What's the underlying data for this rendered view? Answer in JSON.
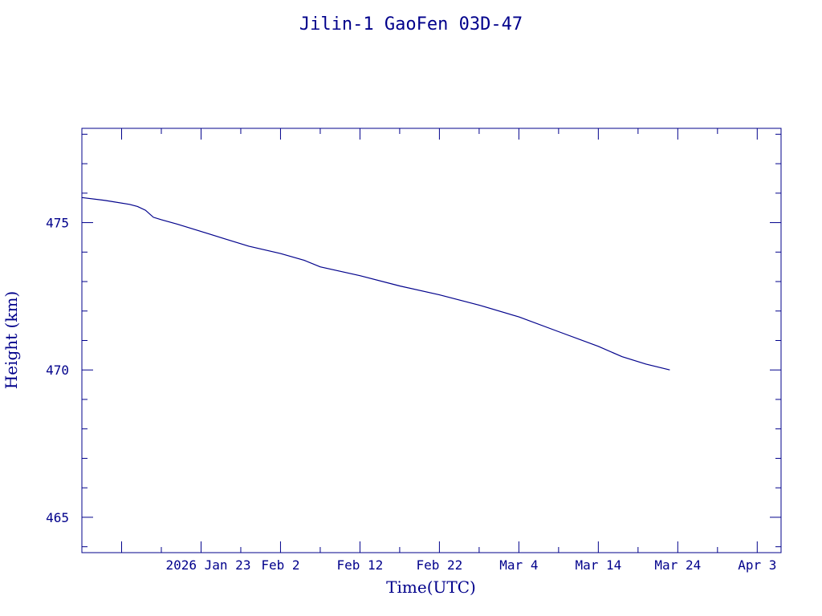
{
  "chart_data": {
    "type": "line",
    "title": "Jilin-1 GaoFen 03D-47",
    "xlabel": "Time(UTC)",
    "ylabel": "Height (km)",
    "xlim": [
      "2026-01-08",
      "2026-04-06"
    ],
    "ylim": [
      463.8,
      478.2
    ],
    "grid": false,
    "color": "#00008b",
    "y_ticks": [
      465,
      470,
      475
    ],
    "x_ticks": [
      {
        "date": "2026-01-23",
        "label": "2026 Jan 23"
      },
      {
        "date": "2026-02-02",
        "label": "Feb  2"
      },
      {
        "date": "2026-02-12",
        "label": "Feb 12"
      },
      {
        "date": "2026-02-22",
        "label": "Feb 22"
      },
      {
        "date": "2026-03-04",
        "label": "Mar  4"
      },
      {
        "date": "2026-03-14",
        "label": "Mar 14"
      },
      {
        "date": "2026-03-24",
        "label": "Mar 24"
      },
      {
        "date": "2026-04-03",
        "label": "Apr  3"
      }
    ],
    "series": [
      {
        "points": [
          {
            "x": "2026-01-08",
            "y": 475.85
          },
          {
            "x": "2026-01-11",
            "y": 475.75
          },
          {
            "x": "2026-01-14",
            "y": 475.62
          },
          {
            "x": "2026-01-15",
            "y": 475.55
          },
          {
            "x": "2026-01-16",
            "y": 475.42
          },
          {
            "x": "2026-01-17",
            "y": 475.18
          },
          {
            "x": "2026-01-18",
            "y": 475.1
          },
          {
            "x": "2026-01-20",
            "y": 474.95
          },
          {
            "x": "2026-01-23",
            "y": 474.7
          },
          {
            "x": "2026-01-26",
            "y": 474.45
          },
          {
            "x": "2026-01-29",
            "y": 474.2
          },
          {
            "x": "2026-02-02",
            "y": 473.95
          },
          {
            "x": "2026-02-05",
            "y": 473.72
          },
          {
            "x": "2026-02-07",
            "y": 473.5
          },
          {
            "x": "2026-02-12",
            "y": 473.2
          },
          {
            "x": "2026-02-17",
            "y": 472.85
          },
          {
            "x": "2026-02-22",
            "y": 472.55
          },
          {
            "x": "2026-02-27",
            "y": 472.2
          },
          {
            "x": "2026-03-04",
            "y": 471.8
          },
          {
            "x": "2026-03-09",
            "y": 471.3
          },
          {
            "x": "2026-03-14",
            "y": 470.8
          },
          {
            "x": "2026-03-17",
            "y": 470.45
          },
          {
            "x": "2026-03-20",
            "y": 470.2
          },
          {
            "x": "2026-03-23",
            "y": 470.0
          }
        ]
      }
    ]
  }
}
